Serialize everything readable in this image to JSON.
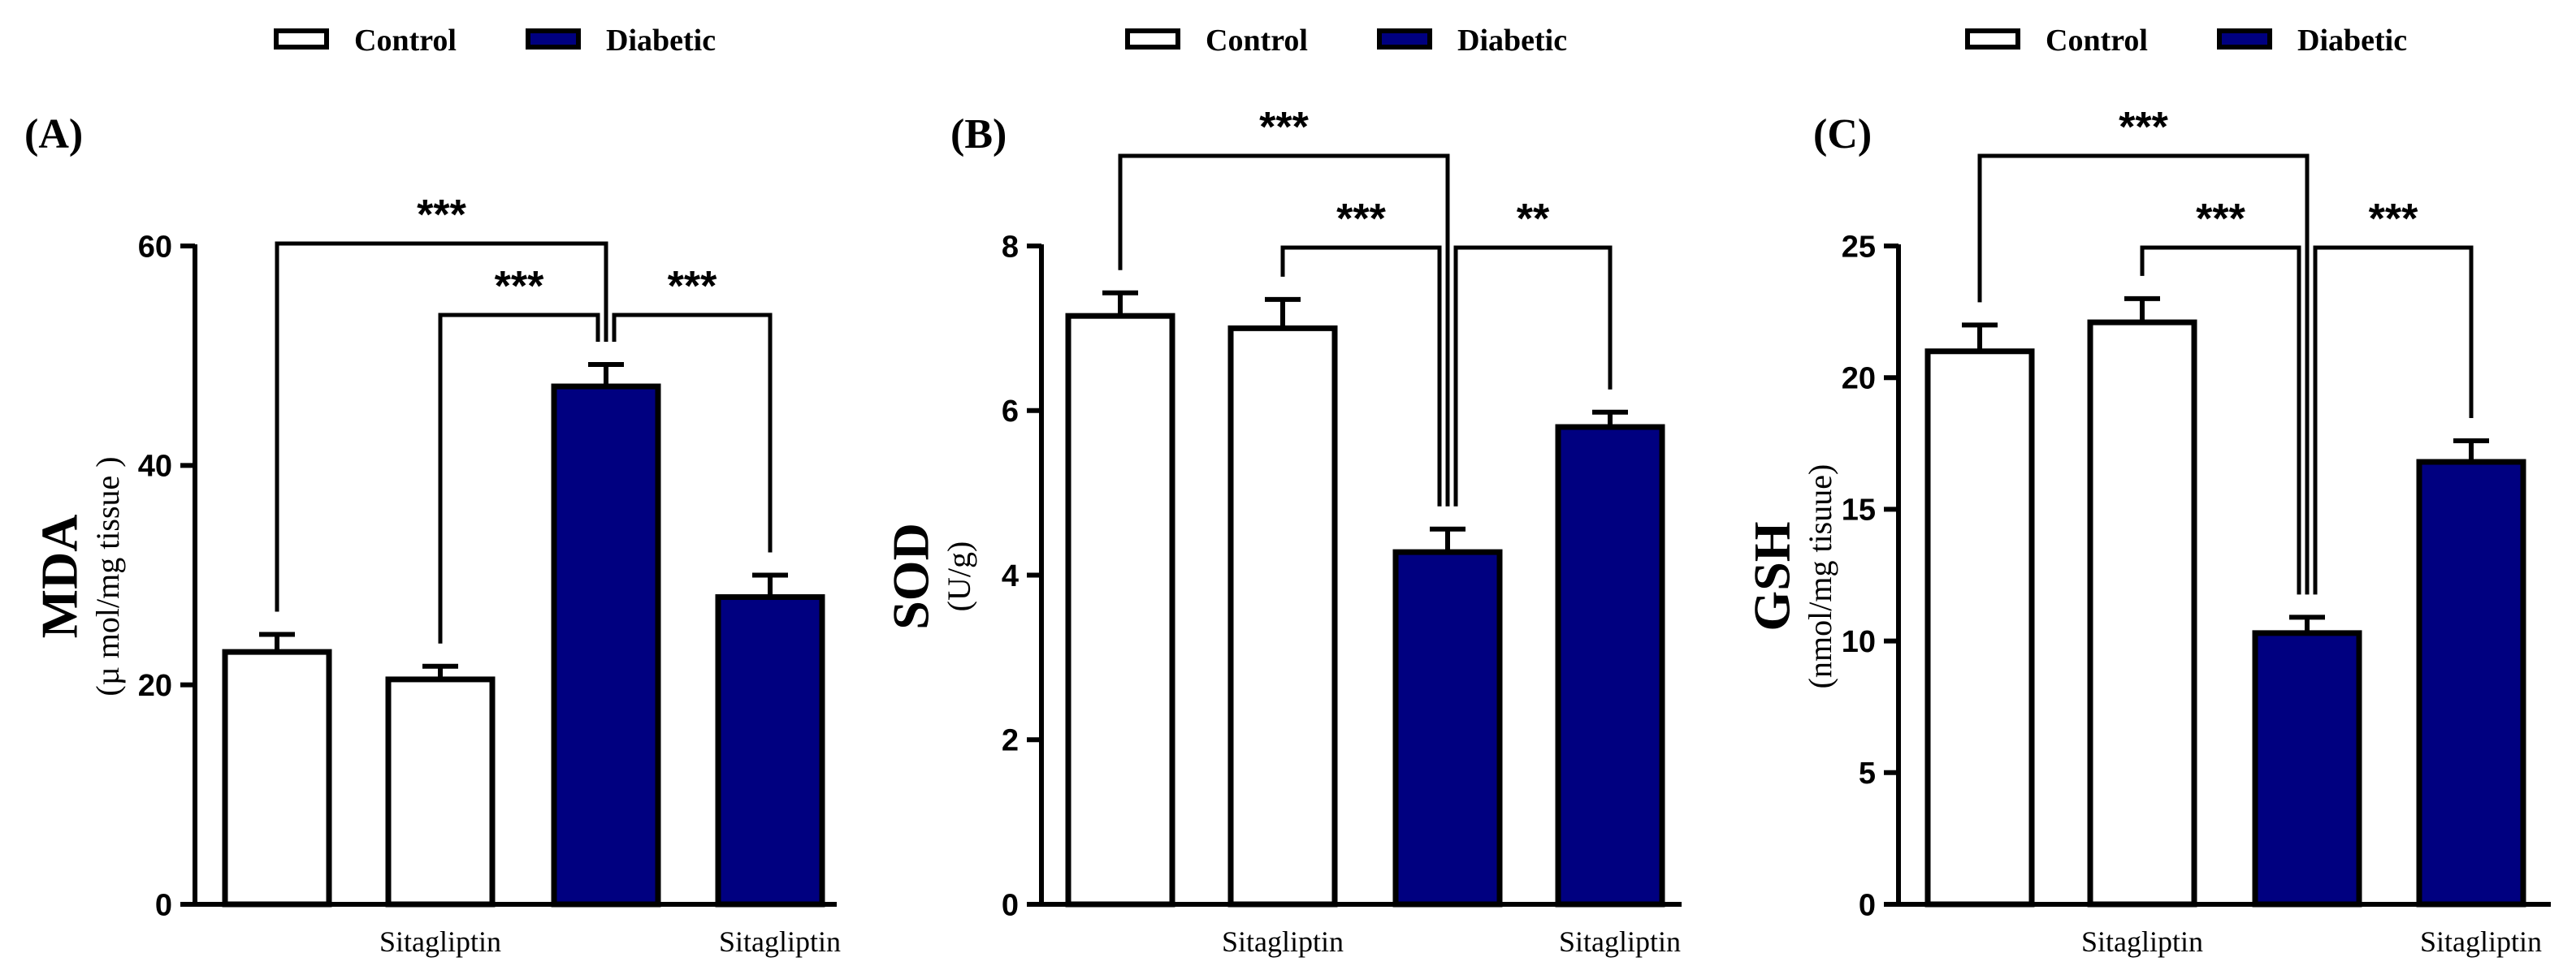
{
  "colors": {
    "control": "#ffffff",
    "diabetic": "#000080",
    "stroke": "#000000"
  },
  "legend_items": [
    {
      "label": "Control",
      "color": "#ffffff"
    },
    {
      "label": "Diabetic",
      "color": "#000080"
    }
  ],
  "chart_data": [
    {
      "type": "bar",
      "panel": "(A)",
      "ylabel": "MDA",
      "yunit": "(µ mol/mg tissue )",
      "ylim": [
        0,
        60
      ],
      "yticks": [
        0,
        20,
        40,
        60
      ],
      "categories": [
        "",
        "Sitagliptin",
        "",
        "Sitagliptin"
      ],
      "groups": [
        "Control",
        "Control",
        "Diabetic",
        "Diabetic"
      ],
      "values": [
        23.0,
        20.5,
        47.2,
        28.0
      ],
      "errors": [
        1.6,
        1.2,
        2.0,
        2.0
      ],
      "significance": [
        {
          "from": 0,
          "to": 2,
          "label": "***",
          "level": 1
        },
        {
          "from": 1,
          "to": 2,
          "label": "***",
          "level": 0
        },
        {
          "from": 3,
          "to": 2,
          "label": "***",
          "level": 0
        }
      ]
    },
    {
      "type": "bar",
      "panel": "(B)",
      "ylabel": "SOD",
      "yunit": "(U/g)",
      "ylim": [
        0,
        8
      ],
      "yticks": [
        0,
        2,
        4,
        6,
        8
      ],
      "categories": [
        "",
        "Sitagliptin",
        "",
        "Sitagliptin"
      ],
      "groups": [
        "Control",
        "Control",
        "Diabetic",
        "Diabetic"
      ],
      "values": [
        7.15,
        7.0,
        4.28,
        5.8
      ],
      "errors": [
        0.28,
        0.35,
        0.28,
        0.18
      ],
      "significance": [
        {
          "from": 0,
          "to": 2,
          "label": "***",
          "level": 1
        },
        {
          "from": 1,
          "to": 2,
          "label": "***",
          "level": 0
        },
        {
          "from": 3,
          "to": 2,
          "label": "**",
          "level": 0
        }
      ]
    },
    {
      "type": "bar",
      "panel": "(C)",
      "ylabel": "GSH",
      "yunit": "(nmol/mg tisuue)",
      "ylim": [
        0,
        25
      ],
      "yticks": [
        0,
        5,
        10,
        15,
        20,
        25
      ],
      "categories": [
        "",
        "Sitagliptin",
        "",
        "Sitagliptin"
      ],
      "groups": [
        "Control",
        "Control",
        "Diabetic",
        "Diabetic"
      ],
      "values": [
        21.0,
        22.1,
        10.3,
        16.8
      ],
      "errors": [
        1.0,
        0.9,
        0.6,
        0.8
      ],
      "significance": [
        {
          "from": 0,
          "to": 2,
          "label": "***",
          "level": 1
        },
        {
          "from": 1,
          "to": 2,
          "label": "***",
          "level": 0
        },
        {
          "from": 3,
          "to": 2,
          "label": "***",
          "level": 0
        }
      ]
    }
  ]
}
